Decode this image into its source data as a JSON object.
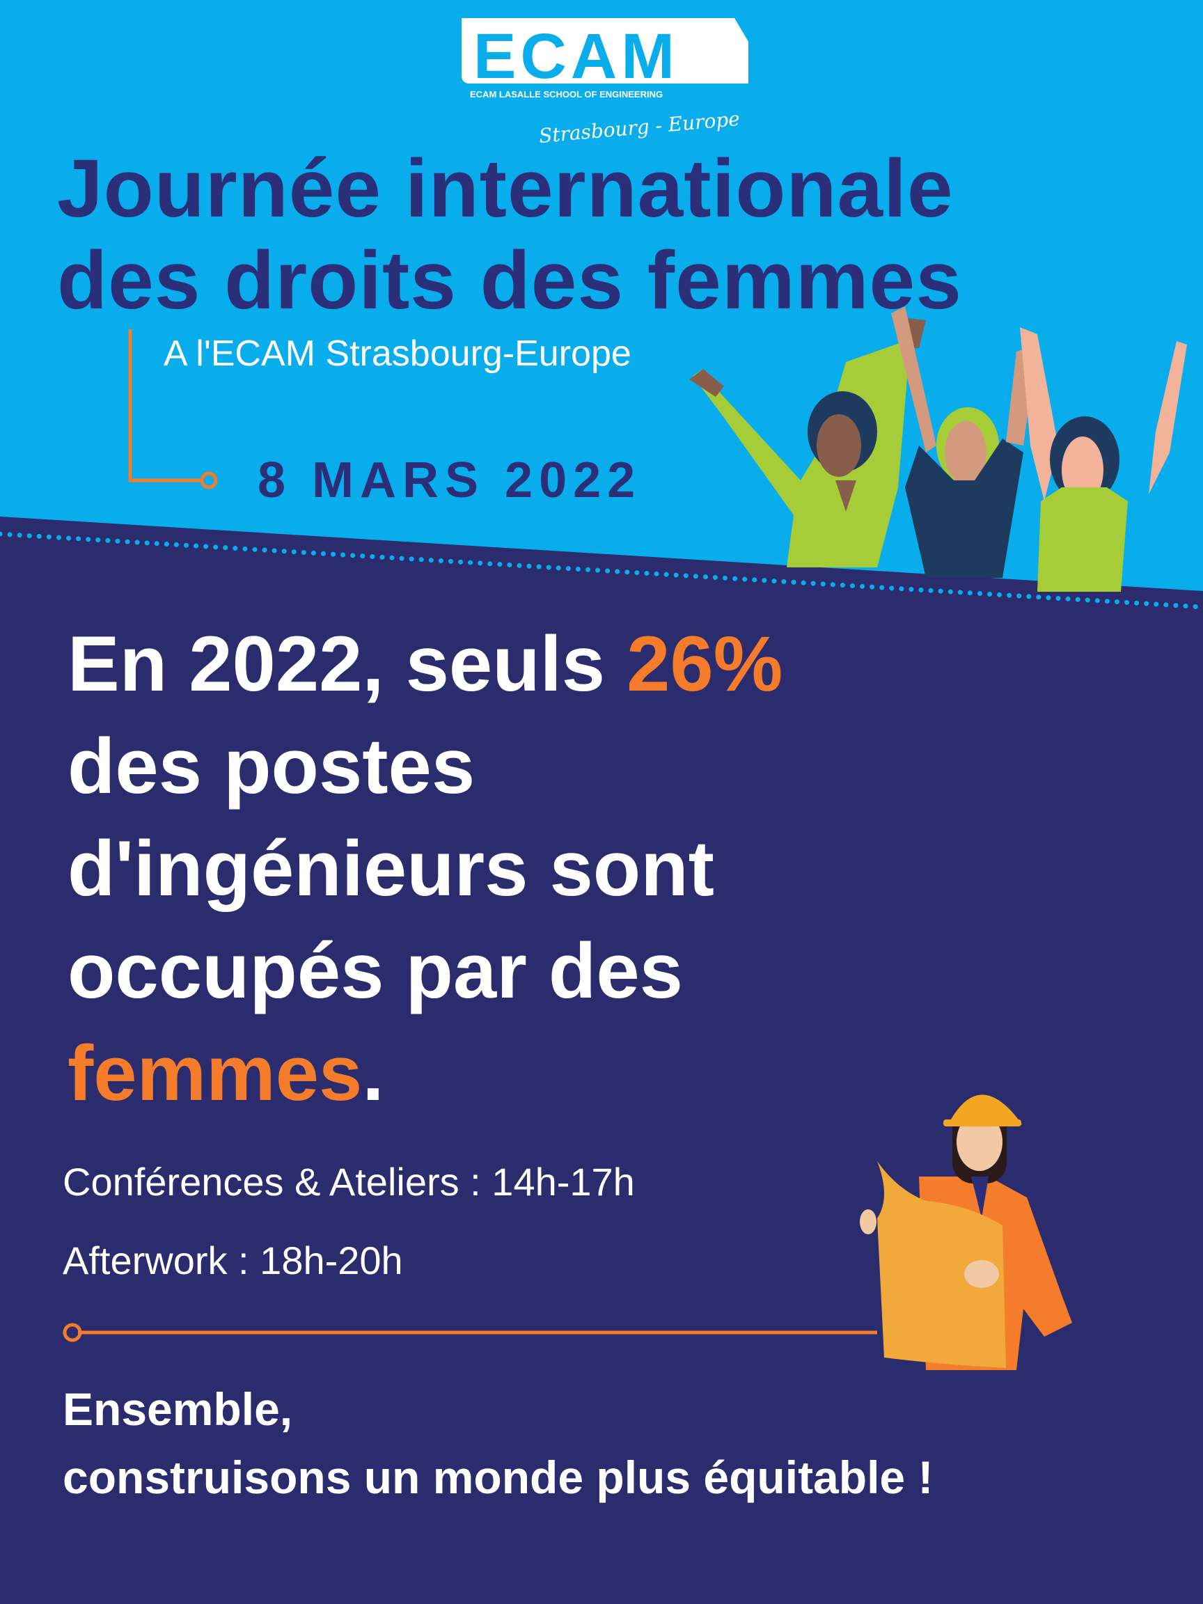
{
  "colors": {
    "sky": "#0aadeb",
    "navy": "#2a2c6e",
    "title_navy": "#2b2e78",
    "orange": "#f47c2a",
    "white": "#ffffff"
  },
  "logo": {
    "wordmark": "ECAM",
    "tagline": "ECAM LASALLE SCHOOL OF ENGINEERING",
    "script": "Strasbourg - Europe"
  },
  "header": {
    "title_line1": "Journée internationale",
    "title_line2": "des droits des femmes",
    "subtitle": "A l'ECAM Strasbourg-Europe",
    "date": "8 MARS 2022"
  },
  "statement": {
    "part1": "En 2022, seuls ",
    "highlight_percent": "26%",
    "line2": "des postes",
    "line3": "d'ingénieurs sont",
    "line4": "occupés par des",
    "highlight_word": "femmes",
    "end": "."
  },
  "schedule": [
    {
      "text": "Conférences & Ateliers : 14h-17h"
    },
    {
      "text": "Afterwork : 18h-20h"
    }
  ],
  "closing": {
    "line1": "Ensemble,",
    "line2": "construisons un monde plus équitable !"
  }
}
